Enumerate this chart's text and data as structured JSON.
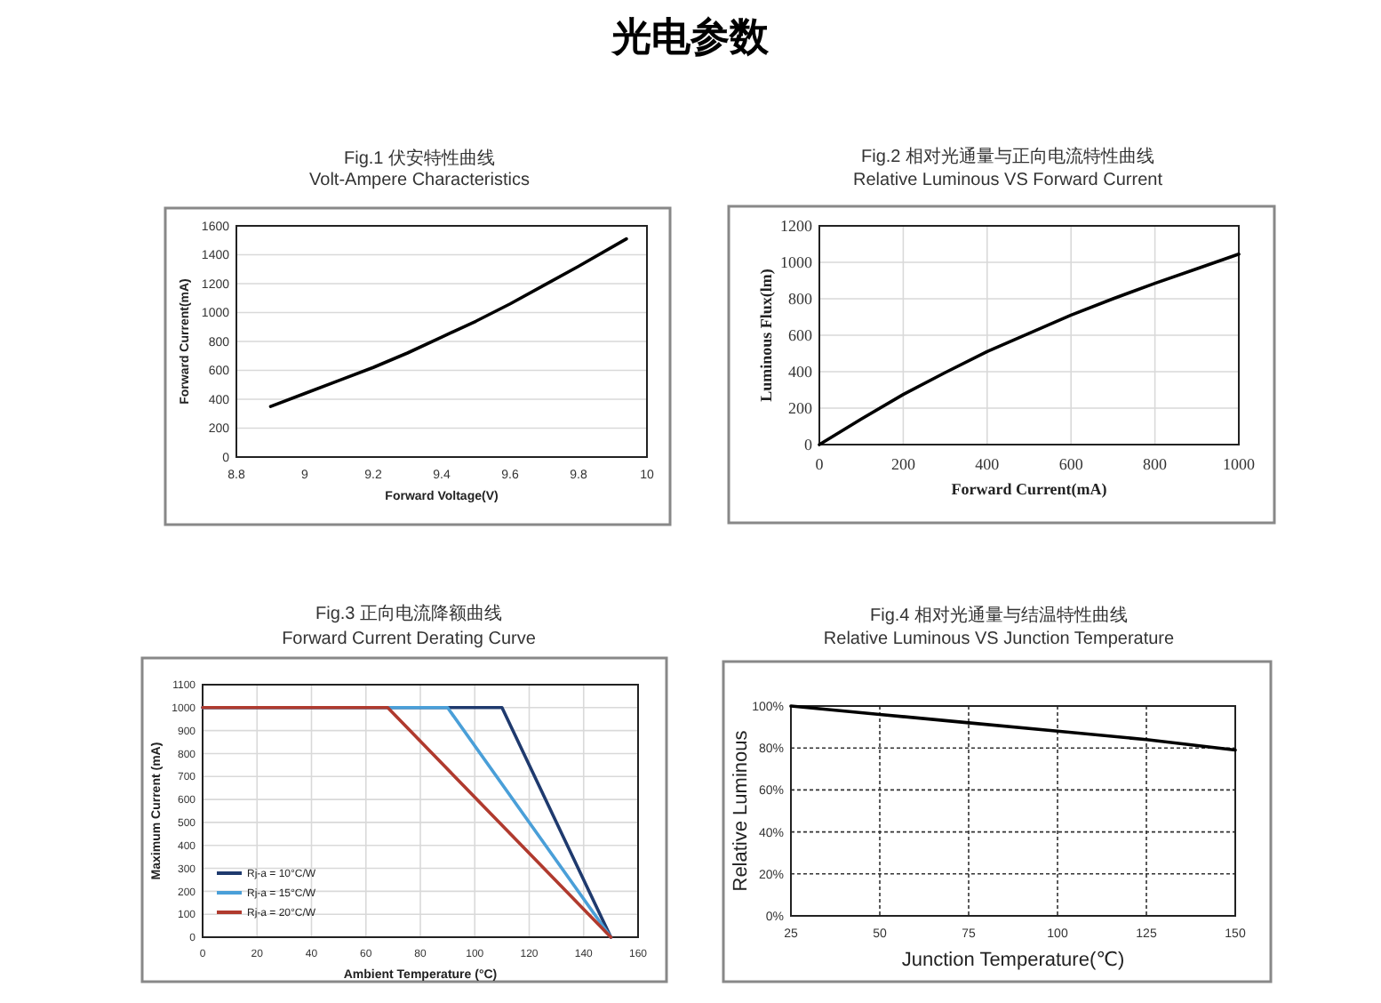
{
  "chart_data": [
    {
      "type": "line",
      "title": "Fig.1 伏安特性曲线",
      "subtitle": "Volt-Ampere Characteristics",
      "xlabel": "Forward Voltage(V)",
      "ylabel": "Forward Current(mA)",
      "annotations": [
        "光电参数"
      ],
      "x": [
        8.9,
        9.0,
        9.1,
        9.2,
        9.3,
        9.4,
        9.5,
        9.6,
        9.7,
        9.8,
        9.94
      ],
      "series": [
        {
          "color": "#000000",
          "values": [
            350,
            440,
            530,
            620,
            720,
            830,
            940,
            1060,
            1190,
            1320,
            1510
          ]
        }
      ],
      "xlim": [
        8.8,
        10
      ],
      "xticks": [
        8.8,
        9,
        9.2,
        9.4,
        9.6,
        9.8,
        10
      ],
      "ylim": [
        0,
        1600
      ],
      "yticks": [
        0,
        200,
        400,
        600,
        800,
        1000,
        1200,
        1400,
        1600
      ],
      "grid": "y",
      "marker": "none",
      "line_style": "solid"
    },
    {
      "type": "line",
      "title": "Fig.2 相对光通量与正向电流特性曲线",
      "subtitle": "Relative Luminous VS Forward Current",
      "xlabel": "Forward Current(mA)",
      "ylabel": "Luminous Flux(lm)",
      "x": [
        0,
        100,
        200,
        300,
        400,
        500,
        600,
        700,
        800,
        900,
        1000
      ],
      "series": [
        {
          "color": "#000000",
          "values": [
            0,
            140,
            275,
            395,
            510,
            610,
            710,
            800,
            885,
            965,
            1045
          ]
        }
      ],
      "xlim": [
        0,
        1000
      ],
      "xticks": [
        0,
        200,
        400,
        600,
        800,
        1000
      ],
      "ylim": [
        0,
        1200
      ],
      "yticks": [
        0,
        200,
        400,
        600,
        800,
        1000,
        1200
      ],
      "grid": true,
      "marker": "none",
      "line_style": "solid"
    },
    {
      "type": "line",
      "title": "Fig.3 正向电流降额曲线",
      "subtitle": "Forward Current Derating Curve",
      "xlabel": "Ambient Temperature (°C)",
      "ylabel": "Maximum Current (mA)",
      "series": [
        {
          "name": "Rj-a = 10°C/W",
          "color": "#1f3a6e",
          "x": [
            0,
            110,
            150
          ],
          "values": [
            1000,
            1000,
            0
          ]
        },
        {
          "name": "Rj-a = 15°C/W",
          "color": "#4a9fd8",
          "x": [
            0,
            90,
            150
          ],
          "values": [
            1000,
            1000,
            0
          ]
        },
        {
          "name": "Rj-a = 20°C/W",
          "color": "#b03a2e",
          "x": [
            0,
            68,
            150
          ],
          "values": [
            1000,
            1000,
            0
          ]
        }
      ],
      "xlim": [
        0,
        160
      ],
      "xticks": [
        0,
        20,
        40,
        60,
        80,
        100,
        120,
        140,
        160
      ],
      "ylim": [
        0,
        1100
      ],
      "yticks": [
        0,
        100,
        200,
        300,
        400,
        500,
        600,
        700,
        800,
        900,
        1000,
        1100
      ],
      "grid": true,
      "legend": "bottom left",
      "marker": "none",
      "line_style": "solid"
    },
    {
      "type": "line",
      "title": "Fig.4 相对光通量与结温特性曲线",
      "subtitle": "Relative Luminous VS Junction Temperature",
      "xlabel": "Junction Temperature(℃)",
      "ylabel": "Relative Luminous",
      "x": [
        25,
        50,
        75,
        100,
        125,
        150
      ],
      "series": [
        {
          "color": "#000000",
          "values": [
            100,
            96,
            92,
            88,
            84,
            79
          ]
        }
      ],
      "xlim": [
        25,
        150
      ],
      "xticks": [
        25,
        50,
        75,
        100,
        125,
        150
      ],
      "ylim": [
        0,
        100
      ],
      "yticks": [
        {
          "value": 0,
          "label": "0%"
        },
        {
          "value": 20,
          "label": "20%"
        },
        {
          "value": 40,
          "label": "40%"
        },
        {
          "value": 60,
          "label": "60%"
        },
        {
          "value": 80,
          "label": "80%"
        },
        {
          "value": 100,
          "label": "100%"
        }
      ],
      "grid": true,
      "marker": "none",
      "line_style": "solid"
    }
  ]
}
